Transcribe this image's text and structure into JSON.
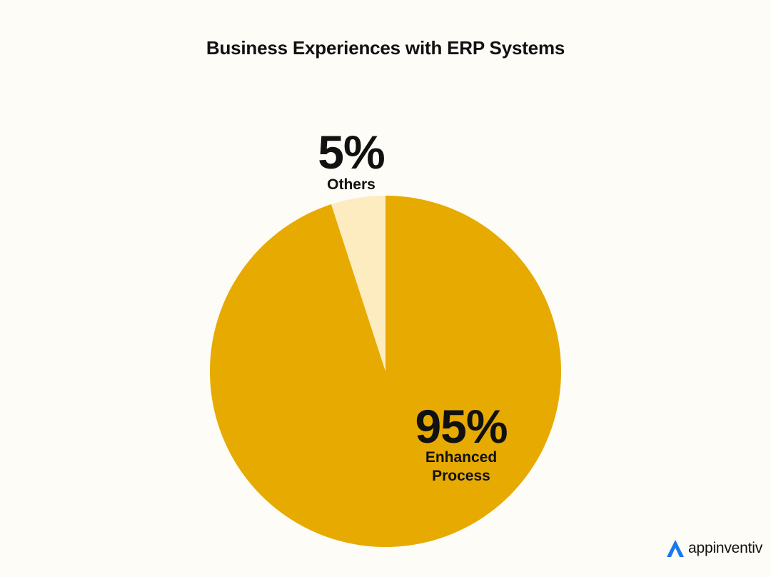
{
  "chart_data": {
    "type": "pie",
    "title": "Business Experiences with ERP Systems",
    "slices": [
      {
        "label": "Enhanced Process",
        "value": 95,
        "value_label": "95%",
        "color": "#e7aa01"
      },
      {
        "label": "Others",
        "value": 5,
        "value_label": "5%",
        "color": "#fdecc0"
      }
    ]
  },
  "branding": {
    "logo_text": "appinventiv",
    "logo_color": "#1877f2"
  }
}
